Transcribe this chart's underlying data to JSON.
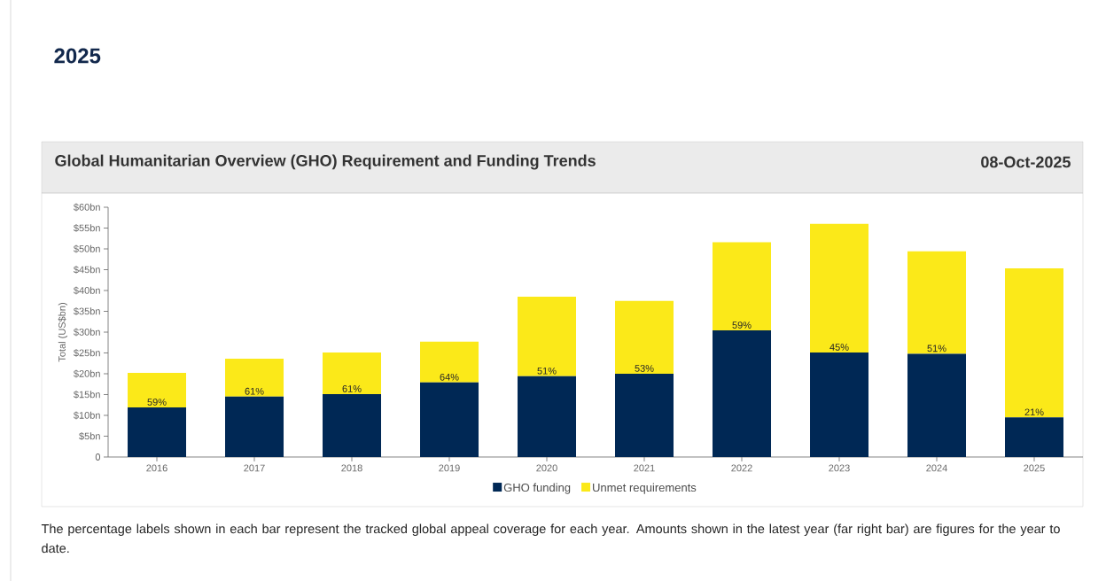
{
  "chart_data": {
    "type": "bar",
    "title": "2025",
    "subtitle": "Global Humanitarian Overview (GHO) Requirement and Funding Trends",
    "ylabel": "Total (US$bn)",
    "annotations": [
      "08-Oct-2025",
      "The percentage labels shown in each bar represent the tracked global appeal coverage for each year. Amounts shown in the latest year (far right bar) are figures for the year to date.",
      {
        "text": "59%",
        "x": "2016",
        "y": 11.9
      },
      {
        "text": "61%",
        "x": "2017",
        "y": 14.5
      },
      {
        "text": "61%",
        "x": "2018",
        "y": 15.1
      },
      {
        "text": "64%",
        "x": "2019",
        "y": 17.9
      },
      {
        "text": "51%",
        "x": "2020",
        "y": 19.4
      },
      {
        "text": "53%",
        "x": "2021",
        "y": 20.0
      },
      {
        "text": "59%",
        "x": "2022",
        "y": 30.4
      },
      {
        "text": "45%",
        "x": "2023",
        "y": 25.1
      },
      {
        "text": "51%",
        "x": "2024",
        "y": 24.8
      },
      {
        "text": "21%",
        "x": "2025",
        "y": 9.5
      }
    ],
    "categories": [
      "2016",
      "2017",
      "2018",
      "2019",
      "2020",
      "2021",
      "2022",
      "2023",
      "2024",
      "2025"
    ],
    "stacked": true,
    "legend": "bottom",
    "series": [
      {
        "name": "GHO funding",
        "color": "#002855",
        "values": [
          11.9,
          14.5,
          15.1,
          17.9,
          19.4,
          20.0,
          30.4,
          25.1,
          24.8,
          9.5
        ]
      },
      {
        "name": "Unmet requirements",
        "color": "#fbe919",
        "values": [
          8.3,
          9.1,
          10.0,
          9.8,
          19.1,
          17.5,
          21.2,
          30.9,
          24.6,
          35.8
        ]
      }
    ],
    "ylim": [
      0,
      60
    ],
    "yticks": [
      0,
      {
        "value": 5,
        "label": "$5bn"
      },
      {
        "value": 10,
        "label": "$10bn"
      },
      {
        "value": 15,
        "label": "$15bn"
      },
      {
        "value": 20,
        "label": "$20bn"
      },
      {
        "value": 25,
        "label": "$25bn"
      },
      {
        "value": 30,
        "label": "$30bn"
      },
      {
        "value": 35,
        "label": "$35bn"
      },
      {
        "value": 40,
        "label": "$40bn"
      },
      {
        "value": 45,
        "label": "$45bn"
      },
      {
        "value": 50,
        "label": "$50bn"
      },
      {
        "value": 55,
        "label": "$55bn"
      },
      {
        "value": 60,
        "label": "$60bn"
      }
    ]
  }
}
